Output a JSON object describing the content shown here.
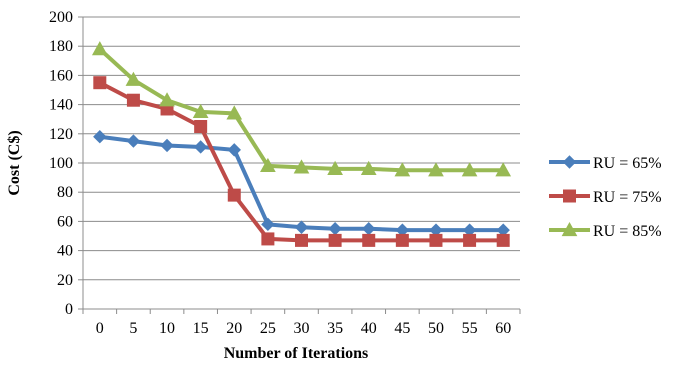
{
  "chart_data": {
    "type": "line",
    "title": "",
    "xlabel": "Number of Iterations",
    "ylabel": "Cost (C$)",
    "x": [
      0,
      5,
      10,
      15,
      20,
      25,
      30,
      35,
      40,
      45,
      50,
      55,
      60
    ],
    "x_tick_labels": [
      "0",
      "5",
      "10",
      "15",
      "20",
      "25",
      "30",
      "35",
      "40",
      "45",
      "50",
      "55",
      "60"
    ],
    "ylim": [
      0,
      200
    ],
    "y_ticks": [
      0,
      20,
      40,
      60,
      80,
      100,
      120,
      140,
      160,
      180,
      200
    ],
    "y_tick_labels": [
      "0",
      "20",
      "40",
      "60",
      "80",
      "100",
      "120",
      "140",
      "160",
      "180",
      "200"
    ],
    "grid": "horizontal",
    "legend_position": "right",
    "series": [
      {
        "name": "RU = 65%",
        "color": "#4A7EBB",
        "marker": "diamond",
        "values": [
          118,
          115,
          112,
          111,
          109,
          58,
          56,
          55,
          55,
          54,
          54,
          54,
          54
        ]
      },
      {
        "name": "RU = 75%",
        "color": "#BE4B48",
        "marker": "square",
        "values": [
          155,
          143,
          137,
          125,
          78,
          48,
          47,
          47,
          47,
          47,
          47,
          47,
          47
        ]
      },
      {
        "name": "RU = 85%",
        "color": "#98B954",
        "marker": "triangle",
        "values": [
          178,
          157,
          143,
          135,
          134,
          98,
          97,
          96,
          96,
          95,
          95,
          95,
          95
        ]
      }
    ]
  }
}
